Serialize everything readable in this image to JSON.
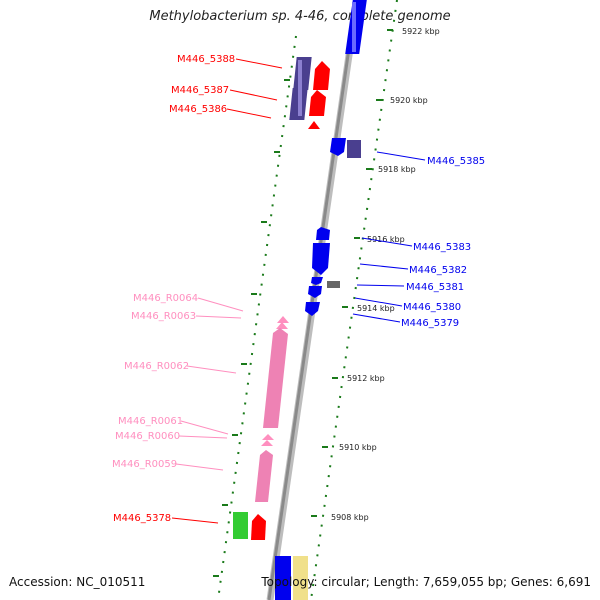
{
  "title": "Methylobacterium sp. 4-46, complete genome",
  "footer": {
    "accession": "Accession: NC_010511",
    "summary": "Topology: circular; Length: 7,659,055 bp; Genes: 6,691"
  },
  "kbp_labels": [
    "5922 kbp",
    "5920 kbp",
    "5918 kbp",
    "5916 kbp",
    "5914 kbp",
    "5912 kbp",
    "5910 kbp",
    "5908 kbp"
  ],
  "gene_labels_left": [
    "M446_5388",
    "M446_5387",
    "M446_5386",
    "M446_5378"
  ],
  "rna_labels": [
    "M446_R0064",
    "M446_R0063",
    "M446_R0062",
    "M446_R0061",
    "M446_R0060",
    "M446_R0059"
  ],
  "gene_labels_right": [
    "M446_5385",
    "M446_5383",
    "M446_5382",
    "M446_5381",
    "M446_5380",
    "M446_5379"
  ],
  "colors": {
    "cds_red": "#ff0000",
    "cds_blue": "#0000ee",
    "cds_purple": "#4a3f8f",
    "rna_pink": "#ff8fbf",
    "rrna_pink": "#ee82b4",
    "green": "#33cc33",
    "yellow": "#f0e08a",
    "gray": "#666666",
    "tick_green": "#1a7a1a"
  }
}
